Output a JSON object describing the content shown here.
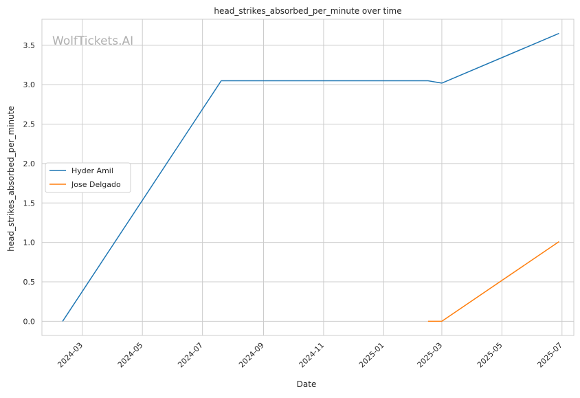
{
  "chart_data": {
    "type": "line",
    "title": "head_strikes_absorbed_per_minute over time",
    "xlabel": "Date",
    "ylabel": "head_strikes_absorbed_per_minute",
    "watermark": "WolfTickets.AI",
    "x_axis_type": "date",
    "xlim": [
      "2024-01-20",
      "2025-07-13"
    ],
    "ylim": [
      -0.18,
      3.83
    ],
    "x_ticks": [
      "2024-03",
      "2024-05",
      "2024-07",
      "2024-09",
      "2024-11",
      "2025-01",
      "2025-03",
      "2025-05",
      "2025-07"
    ],
    "y_ticks": [
      "0.0",
      "0.5",
      "1.0",
      "1.5",
      "2.0",
      "2.5",
      "3.0",
      "3.5"
    ],
    "grid": true,
    "legend_position": "center-left",
    "series": [
      {
        "name": "Hyder Amil",
        "color": "#1f77b4",
        "points": [
          {
            "x": "2024-02-10",
            "y": 0.0
          },
          {
            "x": "2024-07-20",
            "y": 3.05
          },
          {
            "x": "2025-02-15",
            "y": 3.05
          },
          {
            "x": "2025-03-01",
            "y": 3.02
          },
          {
            "x": "2025-06-28",
            "y": 3.65
          }
        ]
      },
      {
        "name": "Jose Delgado",
        "color": "#ff7f0e",
        "points": [
          {
            "x": "2025-02-15",
            "y": 0.0
          },
          {
            "x": "2025-03-01",
            "y": 0.0
          },
          {
            "x": "2025-06-28",
            "y": 1.01
          }
        ]
      }
    ]
  }
}
